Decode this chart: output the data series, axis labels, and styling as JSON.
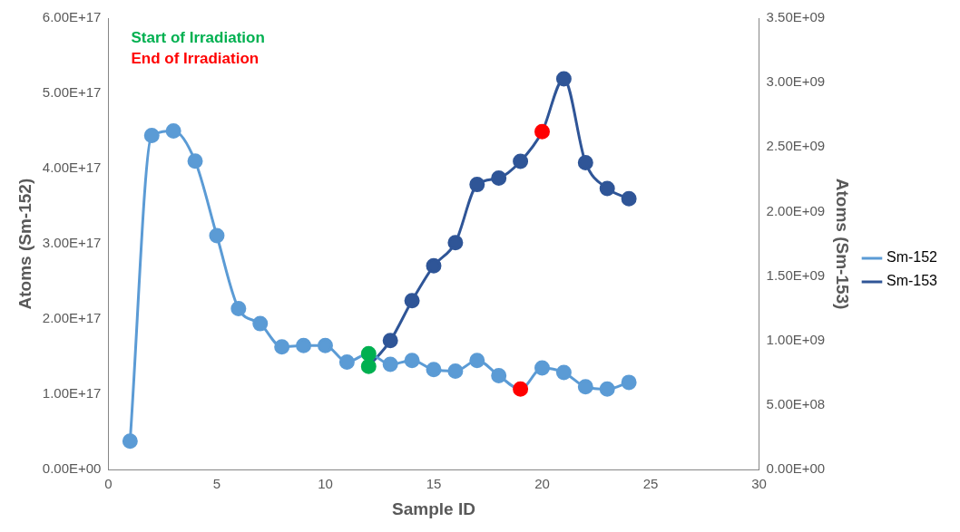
{
  "chart_data": {
    "type": "line",
    "xlabel": "Sample ID",
    "ylabel": "Atoms (Sm-152)",
    "y2label": "Atoms (Sm-153)",
    "annotations": [
      "Start of Irradiation",
      "End of Irradiation"
    ],
    "xlim": [
      0,
      30
    ],
    "xticks": [
      0,
      5,
      10,
      15,
      20,
      25,
      30
    ],
    "ylim": [
      0,
      6e+17
    ],
    "yticks": [
      {
        "value": 0,
        "label": "0.00E+00"
      },
      {
        "value": 1e+17,
        "label": "1.00E+17"
      },
      {
        "value": 2e+17,
        "label": "2.00E+17"
      },
      {
        "value": 3e+17,
        "label": "3.00E+17"
      },
      {
        "value": 4e+17,
        "label": "4.00E+17"
      },
      {
        "value": 5e+17,
        "label": "5.00E+17"
      },
      {
        "value": 6e+17,
        "label": "6.00E+17"
      }
    ],
    "y2lim": [
      0,
      3500000000.0
    ],
    "y2ticks": [
      {
        "value": 0,
        "label": "0.00E+00"
      },
      {
        "value": 500000000.0,
        "label": "5.00E+08"
      },
      {
        "value": 1000000000.0,
        "label": "1.00E+09"
      },
      {
        "value": 1500000000.0,
        "label": "1.50E+09"
      },
      {
        "value": 2000000000.0,
        "label": "2.00E+09"
      },
      {
        "value": 2500000000.0,
        "label": "2.50E+09"
      },
      {
        "value": 3000000000.0,
        "label": "3.00E+09"
      },
      {
        "value": 3500000000.0,
        "label": "3.50E+09"
      }
    ],
    "grid": false,
    "legend": "right",
    "marker": "circle",
    "series": [
      {
        "name": "Sm-152",
        "color": "#5b9bd5",
        "x": [
          1,
          2,
          3,
          4,
          5,
          6,
          7,
          8,
          9,
          10,
          11,
          12,
          13,
          14,
          15,
          16,
          17,
          18,
          19,
          20,
          21,
          22,
          23,
          24
        ],
        "values": [
          3.8e+16,
          4.44e+17,
          4.5e+17,
          4.1e+17,
          3.11e+17,
          2.14e+17,
          1.94e+17,
          1.63e+17,
          1.65e+17,
          1.65e+17,
          1.43e+17,
          1.54e+17,
          1.4e+17,
          1.45e+17,
          1.33e+17,
          1.31e+17,
          1.45e+17,
          1.25e+17,
          1.07e+17,
          1.35e+17,
          1.29e+17,
          1.1e+17,
          1.07e+17,
          1.16e+17
        ],
        "colors": [
          "#5b9bd5",
          "#5b9bd5",
          "#5b9bd5",
          "#5b9bd5",
          "#5b9bd5",
          "#5b9bd5",
          "#5b9bd5",
          "#5b9bd5",
          "#5b9bd5",
          "#5b9bd5",
          "#5b9bd5",
          "#00b050",
          "#5b9bd5",
          "#5b9bd5",
          "#5b9bd5",
          "#5b9bd5",
          "#5b9bd5",
          "#5b9bd5",
          "#ff0000",
          "#5b9bd5",
          "#5b9bd5",
          "#5b9bd5",
          "#5b9bd5",
          "#5b9bd5"
        ]
      },
      {
        "name": "Sm-153",
        "color": "#2f5597",
        "axis": "y2",
        "x": [
          12,
          13,
          14,
          15,
          16,
          17,
          18,
          19,
          20,
          21,
          22,
          23,
          24
        ],
        "values": [
          800000000.0,
          1000000000.0,
          1310000000.0,
          1580000000.0,
          1760000000.0,
          2210000000.0,
          2260000000.0,
          2390000000.0,
          2620000000.0,
          3030000000.0,
          2380000000.0,
          2180000000.0,
          2100000000.0
        ],
        "colors": [
          "#00b050",
          "#2f5597",
          "#2f5597",
          "#2f5597",
          "#2f5597",
          "#2f5597",
          "#2f5597",
          "#2f5597",
          "#ff0000",
          "#2f5597",
          "#2f5597",
          "#2f5597",
          "#2f5597"
        ]
      }
    ]
  }
}
